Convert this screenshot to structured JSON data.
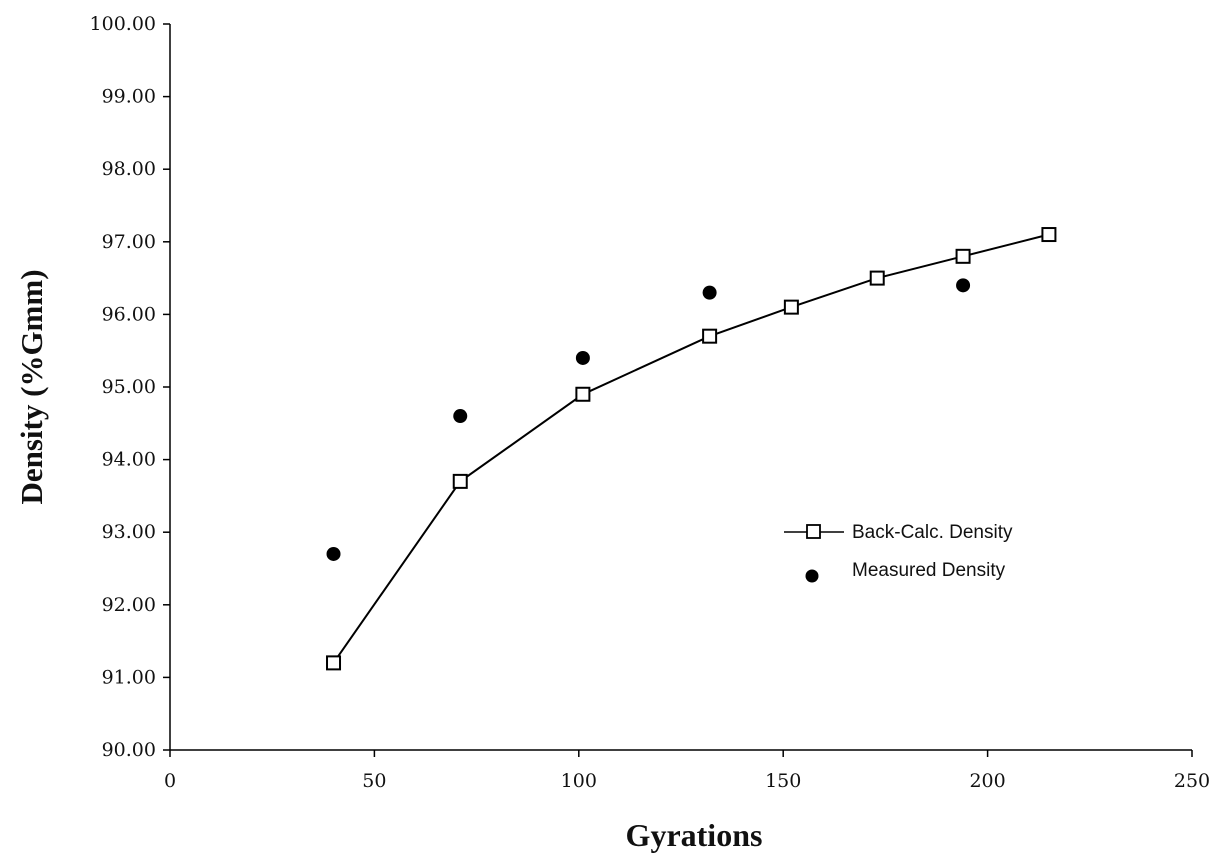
{
  "chart_data": {
    "type": "scatter",
    "xlabel": "Gyrations",
    "ylabel": "Density (%Gmm)",
    "xlim": [
      0,
      250
    ],
    "ylim": [
      90,
      100
    ],
    "x_ticks": [
      "0",
      "50",
      "100",
      "150",
      "200",
      "250"
    ],
    "y_ticks": [
      "90.00",
      "91.00",
      "92.00",
      "93.00",
      "94.00",
      "95.00",
      "96.00",
      "97.00",
      "98.00",
      "99.00",
      "100.00"
    ],
    "grid": false,
    "legend_position": "center-right",
    "series": [
      {
        "name": "Back-Calc. Density",
        "style": "line-with-open-square-markers",
        "color": "#000000",
        "x": [
          40,
          71,
          101,
          132,
          152,
          173,
          194,
          215
        ],
        "y": [
          91.2,
          93.7,
          94.9,
          95.7,
          96.1,
          96.5,
          96.8,
          97.1
        ]
      },
      {
        "name": "Measured Density",
        "style": "filled-circle-markers",
        "color": "#000000",
        "x": [
          40,
          71,
          101,
          132,
          152,
          173,
          194,
          215
        ],
        "y": [
          92.7,
          94.6,
          95.4,
          96.3,
          96.1,
          96.5,
          96.4,
          97.1
        ]
      }
    ]
  }
}
